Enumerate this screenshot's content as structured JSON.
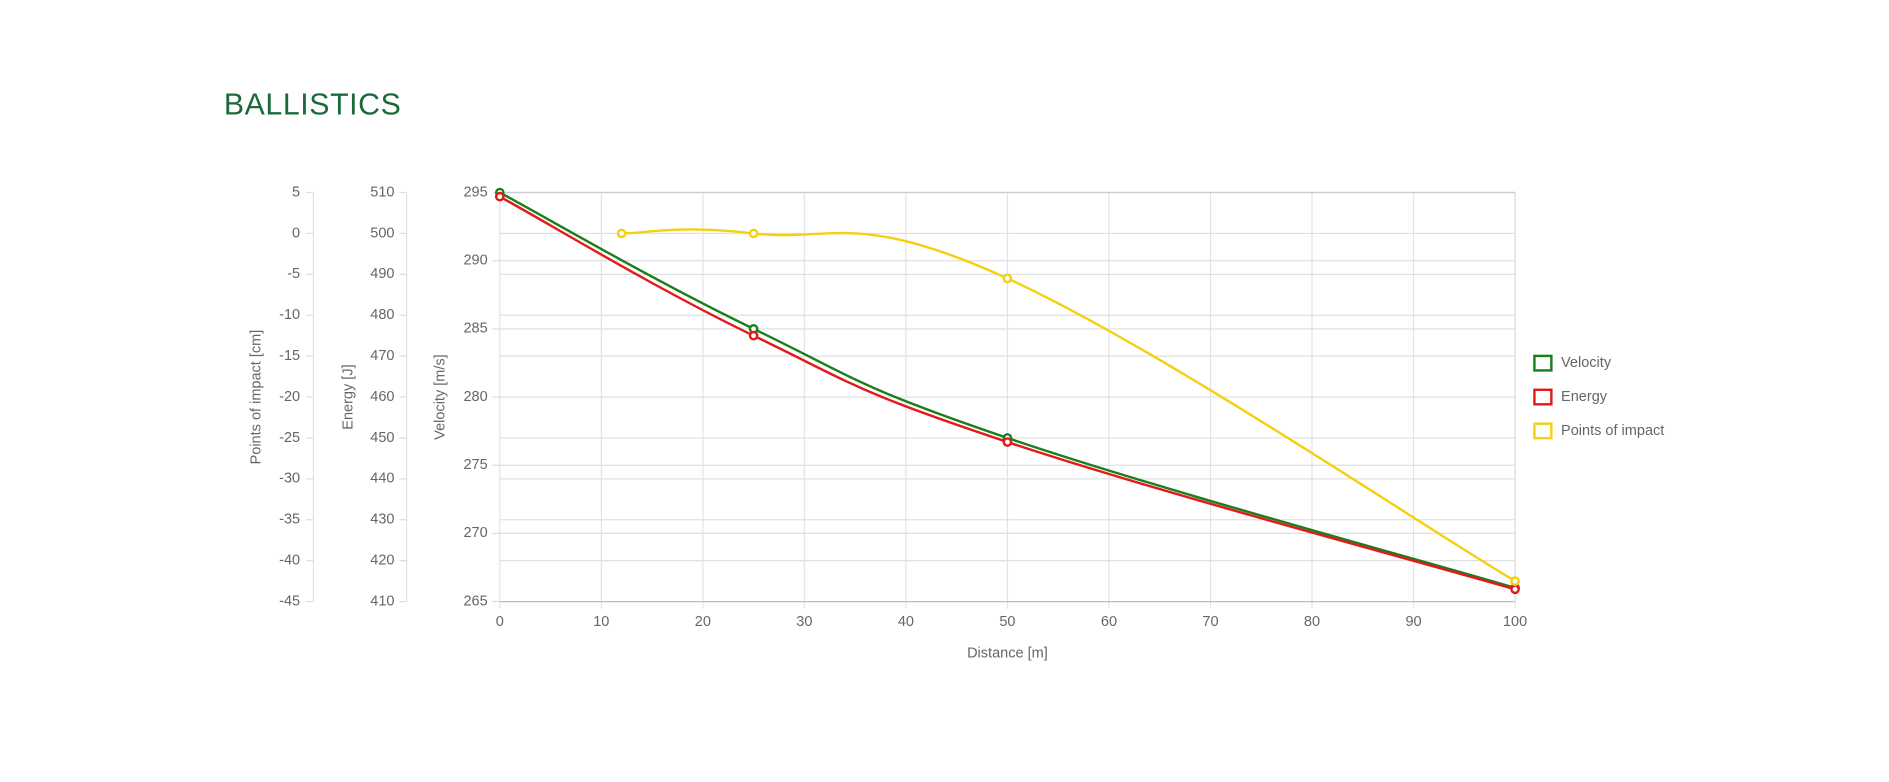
{
  "chart_data": {
    "type": "line",
    "title": "BALLISTICS",
    "x_label": "Distance [m]",
    "xlim": [
      0,
      100
    ],
    "xticks": [
      0,
      10,
      20,
      30,
      40,
      50,
      60,
      70,
      80,
      90,
      100
    ],
    "y_label": "Velocity [m/s]",
    "ylim": [
      265,
      295
    ],
    "yticks": [
      265,
      270,
      275,
      280,
      285,
      290,
      295
    ],
    "y2_label": "Energy [J]",
    "y2lim": [
      410,
      510
    ],
    "y2ticks": [
      410,
      420,
      430,
      440,
      450,
      460,
      470,
      480,
      490,
      500,
      510
    ],
    "y3_label": "Points of impact [cm]",
    "y3lim": [
      -45,
      5
    ],
    "y3ticks": [
      -45,
      -40,
      -35,
      -30,
      -25,
      -20,
      -15,
      -10,
      -5,
      0,
      5
    ],
    "grid": true,
    "legend": "right",
    "series": [
      {
        "name": "Velocity",
        "color": "#1a7f1a",
        "axis": "y",
        "x": [
          0,
          25,
          50,
          100
        ],
        "values": [
          295,
          285,
          277,
          266
        ]
      },
      {
        "name": "Energy",
        "color": "#e3191c",
        "axis": "y2",
        "x": [
          0,
          25,
          50,
          100
        ],
        "values": [
          509,
          475,
          449,
          413
        ]
      },
      {
        "name": "Points of impact",
        "color": "#f5d010",
        "axis": "y3",
        "x": [
          12,
          25,
          50,
          100
        ],
        "values": [
          0,
          0,
          -5.5,
          -42.5
        ]
      }
    ]
  }
}
